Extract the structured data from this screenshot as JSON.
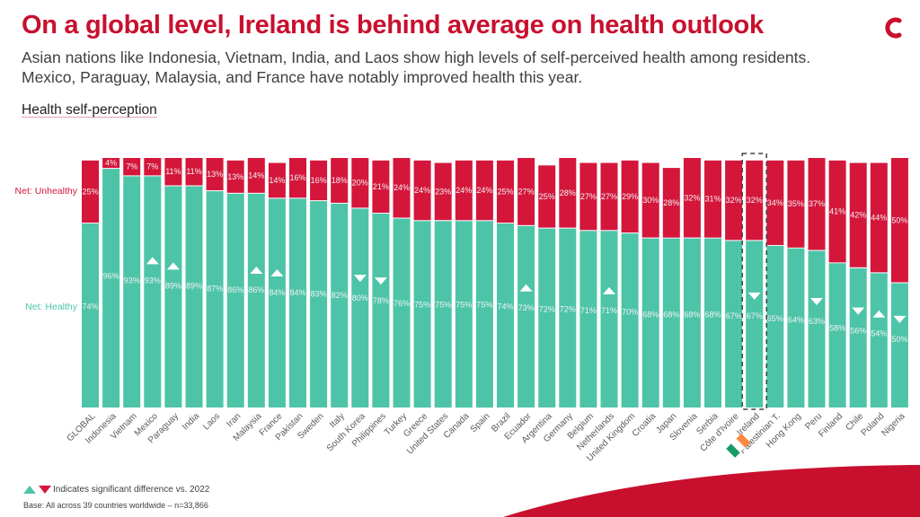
{
  "header": {
    "title": "On a global level, Ireland is behind average on health outlook",
    "subtitle": "Asian nations like Indonesia, Vietnam, India, and Laos show high levels of self-perceived health among residents. Mexico, Paraguay, Malaysia, and France have notably improved health this year.",
    "chart_heading": "Health self-perception"
  },
  "legend": {
    "text": "Indicates significant difference vs. 2022"
  },
  "footer": {
    "base": "Base: All across 39 countries worldwide – n=33,866"
  },
  "colors": {
    "unhealthy": "#d4163b",
    "healthy": "#4dc4a8",
    "title": "#c8102e",
    "highlight_border": "#404040"
  },
  "chart_data": {
    "type": "bar",
    "stacked": true,
    "title": "Health self-perception",
    "series": [
      {
        "name": "Net: Healthy",
        "color": "#4dc4a8",
        "values": [
          74,
          96,
          93,
          93,
          89,
          89,
          87,
          86,
          86,
          84,
          84,
          83,
          82,
          80,
          78,
          76,
          75,
          75,
          75,
          75,
          74,
          73,
          72,
          72,
          71,
          71,
          70,
          68,
          68,
          68,
          68,
          67,
          67,
          65,
          64,
          63,
          58,
          56,
          54,
          50
        ]
      },
      {
        "name": "Net: Unhealthy",
        "color": "#d4163b",
        "values": [
          25,
          4,
          7,
          7,
          11,
          11,
          13,
          13,
          14,
          14,
          16,
          16,
          18,
          20,
          21,
          24,
          24,
          23,
          24,
          24,
          25,
          27,
          25,
          28,
          27,
          27,
          29,
          30,
          28,
          32,
          31,
          32,
          32,
          34,
          35,
          37,
          41,
          42,
          44,
          50
        ]
      }
    ],
    "categories": [
      "GLOBAL",
      "Indonesia",
      "Vietnam",
      "Mexico",
      "Paraguay",
      "India",
      "Laos",
      "Iran",
      "Malaysia",
      "France",
      "Pakistan",
      "Sweden",
      "Italy",
      "South Korea",
      "Philippines",
      "Turkey",
      "Greece",
      "United States",
      "Canada",
      "Spain",
      "Brazil",
      "Ecuador",
      "Argentina",
      "Germany",
      "Belgium",
      "Netherlands",
      "United Kingdom",
      "Croatia",
      "Japan",
      "Slovenia",
      "Serbia",
      "Côte d'Ivoire",
      "Ireland",
      "Palestinian T.",
      "Hong Kong",
      "Peru",
      "Finland",
      "Chile",
      "Poland",
      "Nigeria"
    ],
    "significance": [
      "",
      "",
      "",
      "up",
      "up",
      "",
      "",
      "",
      "up",
      "up",
      "",
      "",
      "",
      "down",
      "down",
      "",
      "",
      "",
      "",
      "",
      "",
      "up",
      "",
      "",
      "",
      "up",
      "",
      "",
      "",
      "",
      "",
      "",
      "down",
      "",
      "",
      "down",
      "",
      "down",
      "up",
      "down"
    ],
    "highlight": "Ireland",
    "ylim": [
      0,
      100
    ]
  }
}
